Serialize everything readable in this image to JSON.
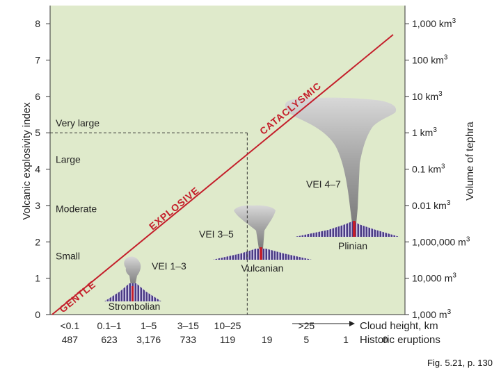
{
  "chart_data": {
    "type": "line",
    "ylabel_left": "Volcanic explosivity index",
    "ylabel_right": "Volume of tephra",
    "ylim": [
      0,
      8.5
    ],
    "y_ticks": [
      "0",
      "1",
      "2",
      "3",
      "4",
      "5",
      "6",
      "7",
      "8"
    ],
    "right_ticks": [
      {
        "base": "1,000 m",
        "sup": "3",
        "vei": 0
      },
      {
        "base": "10,000 m",
        "sup": "3",
        "vei": 1
      },
      {
        "base": "1,000,000 m",
        "sup": "3",
        "vei": 2
      },
      {
        "base": "0.01 km",
        "sup": "3",
        "vei": 3
      },
      {
        "base": "0.1 km",
        "sup": "3",
        "vei": 4
      },
      {
        "base": "1 km",
        "sup": "3",
        "vei": 5
      },
      {
        "base": "10 km",
        "sup": "3",
        "vei": 6
      },
      {
        "base": "100 km",
        "sup": "3",
        "vei": 7
      },
      {
        "base": "1,000 km",
        "sup": "3",
        "vei": 8
      }
    ],
    "size_labels": [
      {
        "text": "Very large",
        "vei": 5.0
      },
      {
        "text": "Large",
        "vei": 4.0
      },
      {
        "text": "Moderate",
        "vei": 2.65
      },
      {
        "text": "Small",
        "vei": 1.35
      }
    ],
    "categories": [
      "<0.1",
      "0.1–1",
      "1–5",
      "3–15",
      "10–25",
      "",
      ">25",
      "",
      ""
    ],
    "x_values": [
      0,
      1,
      2,
      3,
      4,
      5,
      6,
      7,
      8
    ],
    "cloud_height_label": "Cloud height, km",
    "historic_label": "Historic eruptions",
    "historic_eruptions": [
      "487",
      "623",
      "3,176",
      "733",
      "119",
      "19",
      "5",
      "1",
      "0"
    ],
    "line": {
      "x": [
        0,
        8.2
      ],
      "y": [
        0,
        7.7
      ]
    },
    "dashed_reference": {
      "x": 5.0,
      "y": 5.0
    },
    "line_labels": [
      {
        "text": "GENTLE",
        "x": 0.6,
        "y": 0.42
      },
      {
        "text": "EXPLOSIVE",
        "x": 3.05,
        "y": 2.85
      },
      {
        "text": "CATACLYSMIC",
        "x": 6.0,
        "y": 5.6
      }
    ],
    "eruption_types": [
      {
        "name": "Strombolian",
        "vei_label": "VEI 1–3"
      },
      {
        "name": "Vulcanian",
        "vei_label": "VEI 3–5"
      },
      {
        "name": "Plinian",
        "vei_label": "VEI 4–7"
      }
    ],
    "colors": {
      "plot_bg": "#dfeacb",
      "line": "#c41e2a",
      "axis": "#333333",
      "volcano_stripe": "#4b3b85",
      "vent": "#c41e2a",
      "plume": "#9a9a9a"
    }
  },
  "caption": {
    "text": "Fig. 5.21, p. 130"
  }
}
